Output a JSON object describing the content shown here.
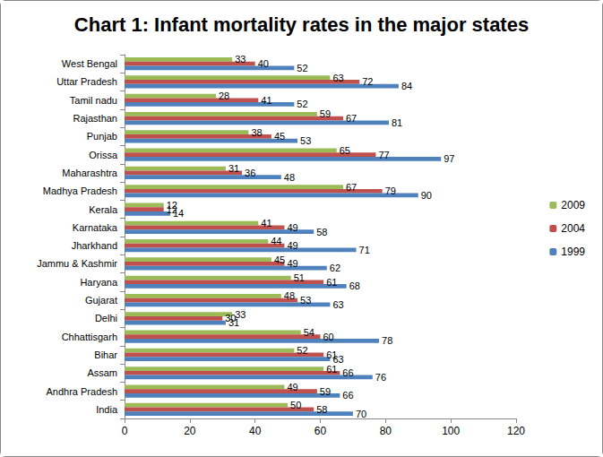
{
  "chart_data": {
    "type": "bar",
    "title": "Chart 1: Infant mortality rates in the major states",
    "orientation": "horizontal",
    "categories": [
      "India",
      "Andhra Pradesh",
      "Assam",
      "Bihar",
      "Chhattisgarh",
      "Delhi",
      "Gujarat",
      "Haryana",
      "Jammu & Kashmir",
      "Jharkhand",
      "Karnataka",
      "Kerala",
      "Madhya Pradesh",
      "Maharashtra",
      "Orissa",
      "Punjab",
      "Rajasthan",
      "Tamil nadu",
      "Uttar Pradesh",
      "West Bengal"
    ],
    "series": [
      {
        "name": "2009",
        "color": "#9bbb59",
        "values": [
          50,
          49,
          61,
          52,
          54,
          33,
          48,
          51,
          45,
          44,
          41,
          12,
          67,
          31,
          65,
          38,
          59,
          28,
          63,
          33
        ]
      },
      {
        "name": "2004",
        "color": "#c0504d",
        "values": [
          58,
          59,
          66,
          61,
          60,
          30,
          53,
          61,
          49,
          49,
          49,
          12,
          79,
          36,
          77,
          45,
          67,
          41,
          72,
          40
        ]
      },
      {
        "name": "1999",
        "color": "#4f81bd",
        "values": [
          70,
          66,
          76,
          63,
          78,
          31,
          63,
          68,
          62,
          71,
          58,
          14,
          90,
          48,
          97,
          53,
          81,
          52,
          84,
          52
        ]
      }
    ],
    "xlim": [
      0,
      120
    ],
    "xticks": [
      0,
      20,
      40,
      60,
      80,
      100,
      120
    ],
    "grid": false,
    "legend": "right",
    "data_labels": true
  }
}
